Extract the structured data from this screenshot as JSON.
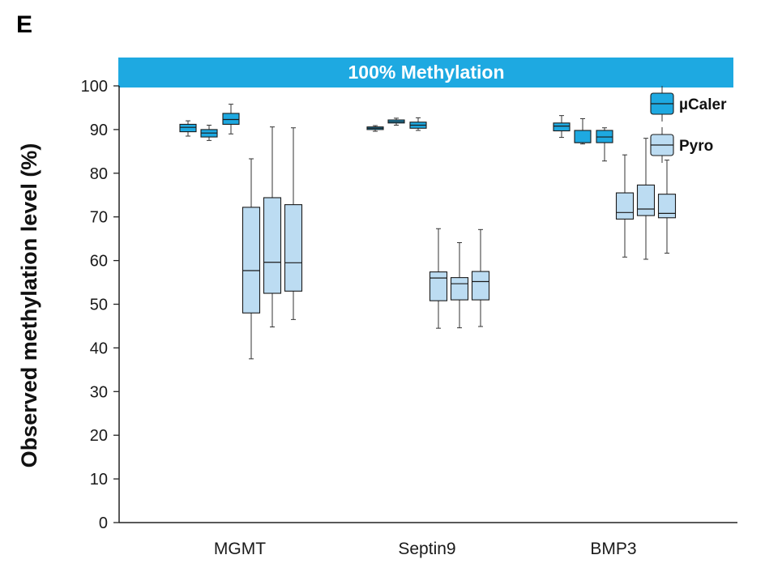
{
  "panel_label": "E",
  "colors": {
    "banner": "#1ea9e1",
    "ucaler": "#1ea9e1",
    "pyro": "#bcdcf2",
    "axis": "#222222"
  },
  "chart_data": {
    "type": "box",
    "banner": "100% Methylation",
    "ylabel": "Observed methylation level (%)",
    "xlabel": "",
    "ylim": [
      0,
      100
    ],
    "yticks": [
      0,
      10,
      20,
      30,
      40,
      50,
      60,
      70,
      80,
      90,
      100
    ],
    "categories": [
      "MGMT",
      "Septin9",
      "BMP3"
    ],
    "legend": [
      {
        "name": "µCaler",
        "color": "#1ea9e1"
      },
      {
        "name": "Pyro",
        "color": "#bcdcf2"
      }
    ],
    "series": [
      {
        "name": "µCaler",
        "color": "#1ea9e1",
        "groups": [
          [
            {
              "min": 88.5,
              "q1": 89.5,
              "median": 90.5,
              "q3": 91.2,
              "max": 92.0
            },
            {
              "min": 87.5,
              "q1": 88.3,
              "median": 89.2,
              "q3": 90.0,
              "max": 91.0
            },
            {
              "min": 89.0,
              "q1": 91.2,
              "median": 92.3,
              "q3": 93.7,
              "max": 95.8
            }
          ],
          [
            {
              "min": 89.6,
              "q1": 90.0,
              "median": 90.3,
              "q3": 90.6,
              "max": 90.9
            },
            {
              "min": 91.0,
              "q1": 91.5,
              "median": 91.8,
              "q3": 92.2,
              "max": 92.6
            },
            {
              "min": 89.8,
              "q1": 90.3,
              "median": 91.0,
              "q3": 91.7,
              "max": 92.7
            }
          ],
          [
            {
              "min": 88.2,
              "q1": 89.7,
              "median": 90.8,
              "q3": 91.5,
              "max": 93.2
            },
            {
              "min": 86.7,
              "q1": 87.0,
              "median": 87.0,
              "q3": 89.8,
              "max": 92.5
            },
            {
              "min": 82.8,
              "q1": 87.0,
              "median": 88.3,
              "q3": 89.8,
              "max": 90.4
            }
          ]
        ]
      },
      {
        "name": "Pyro",
        "color": "#bcdcf2",
        "groups": [
          [
            {
              "min": 37.5,
              "q1": 48.0,
              "median": 57.7,
              "q3": 72.2,
              "max": 83.3
            },
            {
              "min": 44.8,
              "q1": 52.5,
              "median": 59.6,
              "q3": 74.4,
              "max": 90.6
            },
            {
              "min": 46.5,
              "q1": 53.0,
              "median": 59.5,
              "q3": 72.8,
              "max": 90.4
            }
          ],
          [
            {
              "min": 44.5,
              "q1": 50.8,
              "median": 56.0,
              "q3": 57.4,
              "max": 67.3
            },
            {
              "min": 44.6,
              "q1": 51.0,
              "median": 54.7,
              "q3": 56.1,
              "max": 64.1
            },
            {
              "min": 44.9,
              "q1": 51.0,
              "median": 55.2,
              "q3": 57.5,
              "max": 67.1
            }
          ],
          [
            {
              "min": 60.8,
              "q1": 69.5,
              "median": 71.0,
              "q3": 75.5,
              "max": 84.2
            },
            {
              "min": 60.3,
              "q1": 70.3,
              "median": 71.8,
              "q3": 77.3,
              "max": 88.0
            },
            {
              "min": 61.7,
              "q1": 69.8,
              "median": 70.8,
              "q3": 75.2,
              "max": 83.0
            }
          ]
        ]
      }
    ]
  }
}
